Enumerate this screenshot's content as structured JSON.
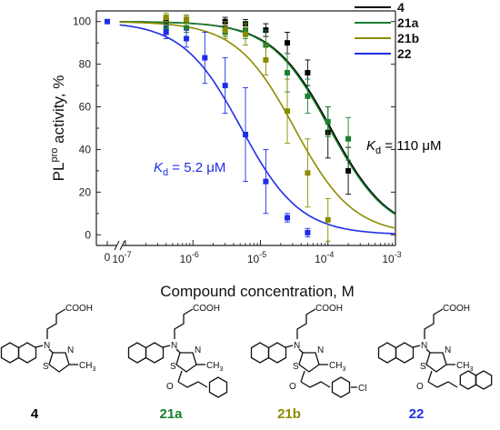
{
  "chart_data": {
    "type": "scatter",
    "xlabel": "Compound concentration, M",
    "ylabel": "PLpro activity, %",
    "ylabel_parts": {
      "pre": "PL",
      "sup": "pro",
      "post": " activity, %"
    },
    "xscale": "log",
    "xlim": [
      1e-07,
      0.001
    ],
    "ylim": [
      -5,
      105
    ],
    "zero_tick_label": "0",
    "x_ticks": [
      {
        "value": 1e-07,
        "mant": "10",
        "exp": "-7"
      },
      {
        "value": 1e-06,
        "mant": "10",
        "exp": "-6"
      },
      {
        "value": 1e-05,
        "mant": "10",
        "exp": "-5"
      },
      {
        "value": 0.0001,
        "mant": "10",
        "exp": "-4"
      },
      {
        "value": 0.001,
        "mant": "10",
        "exp": "-3"
      }
    ],
    "y_ticks": [
      0,
      20,
      40,
      60,
      80,
      100
    ],
    "series": [
      {
        "name": "4",
        "color": "#000000",
        "ic50": 0.00011,
        "points": [
          {
            "x": 4e-07,
            "y": 101,
            "err": 2
          },
          {
            "x": 8e-07,
            "y": 101,
            "err": 2
          },
          {
            "x": 3e-06,
            "y": 100,
            "err": 2
          },
          {
            "x": 6e-06,
            "y": 99,
            "err": 2
          },
          {
            "x": 1.2e-05,
            "y": 96,
            "err": 3
          },
          {
            "x": 2.5e-05,
            "y": 90,
            "err": 5
          },
          {
            "x": 5e-05,
            "y": 76,
            "err": 6
          },
          {
            "x": 0.0001,
            "y": 48,
            "err": 12
          },
          {
            "x": 0.0002,
            "y": 30,
            "err": 11
          }
        ]
      },
      {
        "name": "21a",
        "color": "#1a7f2e",
        "ic50": 0.000105,
        "points": [
          {
            "x": 4e-07,
            "y": 97,
            "err": 3
          },
          {
            "x": 8e-07,
            "y": 97,
            "err": 2
          },
          {
            "x": 3e-06,
            "y": 95,
            "err": 2
          },
          {
            "x": 6e-06,
            "y": 96,
            "err": 4
          },
          {
            "x": 1.2e-05,
            "y": 89,
            "err": 7
          },
          {
            "x": 2.5e-05,
            "y": 76,
            "err": 9
          },
          {
            "x": 5e-05,
            "y": 65,
            "err": 8
          },
          {
            "x": 0.0001,
            "y": 53,
            "err": 7
          },
          {
            "x": 0.0002,
            "y": 45,
            "err": 10
          }
        ]
      },
      {
        "name": "21b",
        "color": "#8c8c00",
        "ic50": 3.2e-05,
        "points": [
          {
            "x": 4e-07,
            "y": 102,
            "err": 2
          },
          {
            "x": 8e-07,
            "y": 101,
            "err": 2
          },
          {
            "x": 3e-06,
            "y": 96,
            "err": 4
          },
          {
            "x": 6e-06,
            "y": 94,
            "err": 5
          },
          {
            "x": 1.2e-05,
            "y": 82,
            "err": 7
          },
          {
            "x": 2.5e-05,
            "y": 58,
            "err": 15
          },
          {
            "x": 5e-05,
            "y": 29,
            "err": 16
          },
          {
            "x": 0.0001,
            "y": 7,
            "err": 10
          }
        ]
      },
      {
        "name": "22",
        "color": "#1f2ee6",
        "ic50": 5.2e-06,
        "points": [
          {
            "x": 4e-07,
            "y": 95,
            "err": 3
          },
          {
            "x": 8e-07,
            "y": 92,
            "err": 4
          },
          {
            "x": 1.5e-06,
            "y": 83,
            "err": 12
          },
          {
            "x": 3e-06,
            "y": 70,
            "err": 13
          },
          {
            "x": 6e-06,
            "y": 47,
            "err": 22
          },
          {
            "x": 1.2e-05,
            "y": 25,
            "err": 15
          },
          {
            "x": 2.5e-05,
            "y": 8,
            "err": 2
          },
          {
            "x": 5e-05,
            "y": 1,
            "err": 2
          }
        ]
      }
    ],
    "zero_point": {
      "y": 100
    },
    "annotations": {
      "kd_22": {
        "K": "K",
        "sub": "d",
        "rest": " = 5.2 μM",
        "color": "#1f2ee6"
      },
      "kd_4": {
        "K": "K",
        "sub": "d",
        "rest": " = 110 μM",
        "color": "#000000"
      }
    },
    "legend_position": "top-right"
  },
  "structures": {
    "acid_label": "COOH",
    "n_label": "N",
    "s_label": "S",
    "o_label": "O",
    "methyl_label": "CH",
    "methyl_sub": "3",
    "cl_label": "Cl",
    "compounds": [
      {
        "name": "4",
        "color": "#000000"
      },
      {
        "name": "21a",
        "color": "#1a7f2e"
      },
      {
        "name": "21b",
        "color": "#8c8c00"
      },
      {
        "name": "22",
        "color": "#1f2ee6"
      }
    ]
  }
}
